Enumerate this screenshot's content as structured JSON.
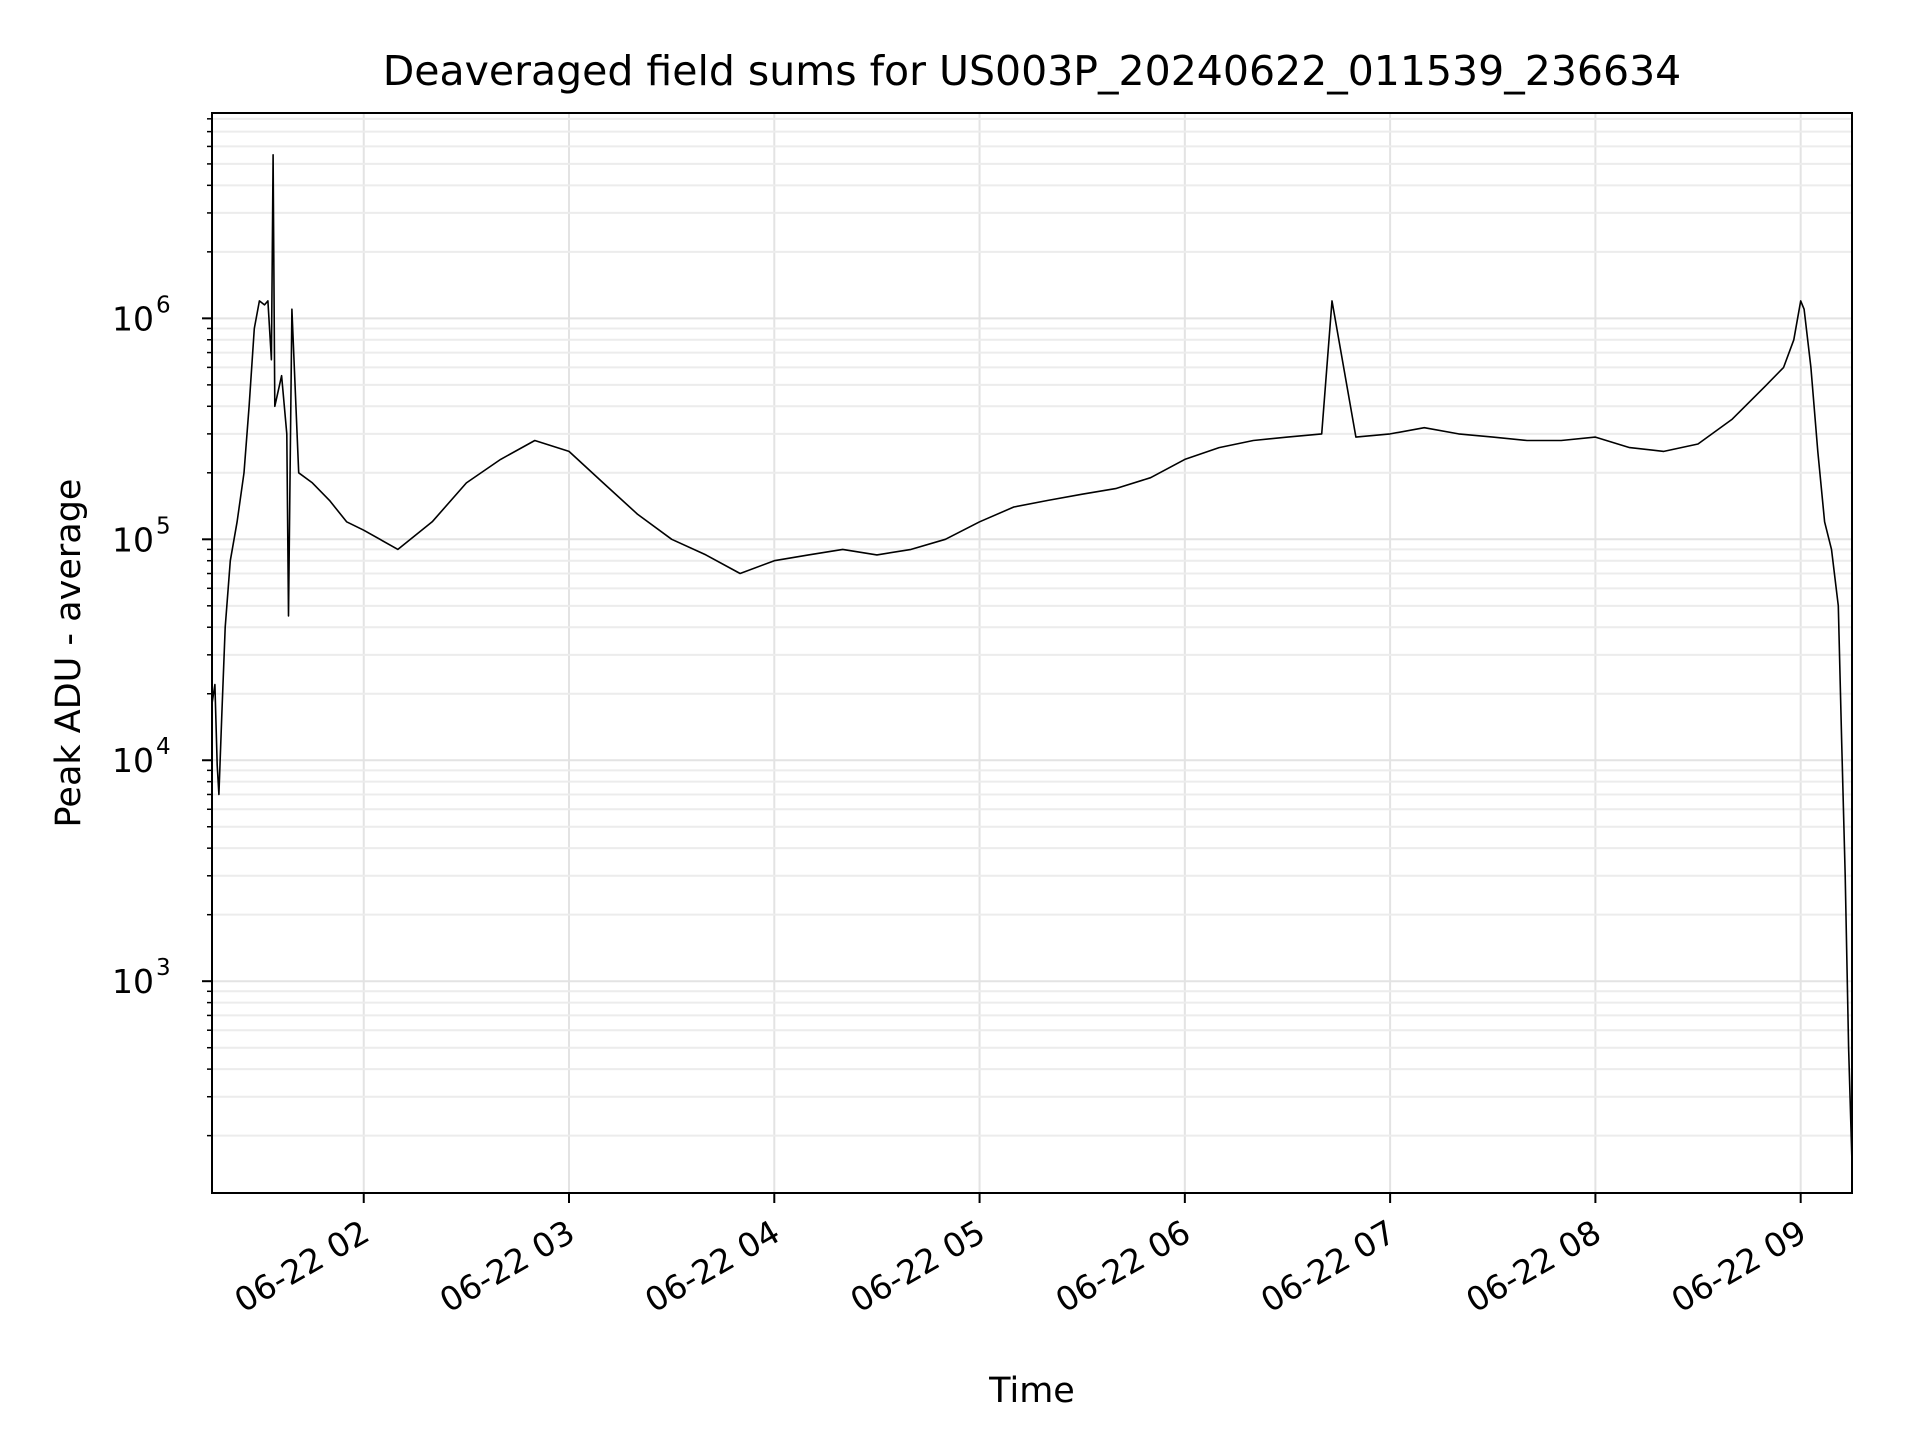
{
  "chart_data": {
    "type": "line",
    "title": "Deaveraged field sums for US003P_20240622_011539_236634",
    "xlabel": "Time",
    "ylabel": "Peak ADU - average",
    "yscale": "log",
    "ylim": [
      110,
      8500000
    ],
    "xlim": [
      "2024-06-22 01:15:39",
      "2024-06-22 09:15:00"
    ],
    "grid": true,
    "x_ticks": [
      {
        "t": "2024-06-22 02:00",
        "label": "06-22 02"
      },
      {
        "t": "2024-06-22 03:00",
        "label": "06-22 03"
      },
      {
        "t": "2024-06-22 04:00",
        "label": "06-22 04"
      },
      {
        "t": "2024-06-22 05:00",
        "label": "06-22 05"
      },
      {
        "t": "2024-06-22 06:00",
        "label": "06-22 06"
      },
      {
        "t": "2024-06-22 07:00",
        "label": "06-22 07"
      },
      {
        "t": "2024-06-22 08:00",
        "label": "06-22 08"
      },
      {
        "t": "2024-06-22 09:00",
        "label": "06-22 09"
      }
    ],
    "y_ticks": [
      {
        "value": 1000,
        "base": "10",
        "exp": "3"
      },
      {
        "value": 10000,
        "base": "10",
        "exp": "4"
      },
      {
        "value": 100000,
        "base": "10",
        "exp": "5"
      },
      {
        "value": 1000000,
        "base": "10",
        "exp": "6"
      }
    ],
    "series": [
      {
        "color": "#000000",
        "points": [
          [
            "2024-06-22 01:15:39",
            18000
          ],
          [
            "2024-06-22 01:16:30",
            22000
          ],
          [
            "2024-06-22 01:17:10",
            9500
          ],
          [
            "2024-06-22 01:17:40",
            7000
          ],
          [
            "2024-06-22 01:18:30",
            16000
          ],
          [
            "2024-06-22 01:19:30",
            40000
          ],
          [
            "2024-06-22 01:21:00",
            80000
          ],
          [
            "2024-06-22 01:23:00",
            120000
          ],
          [
            "2024-06-22 01:25:00",
            200000
          ],
          [
            "2024-06-22 01:26:30",
            400000
          ],
          [
            "2024-06-22 01:28:00",
            900000
          ],
          [
            "2024-06-22 01:29:30",
            1200000
          ],
          [
            "2024-06-22 01:31:00",
            1150000
          ],
          [
            "2024-06-22 01:32:00",
            1200000
          ],
          [
            "2024-06-22 01:33:00",
            650000
          ],
          [
            "2024-06-22 01:33:30",
            5500000
          ],
          [
            "2024-06-22 01:34:00",
            400000
          ],
          [
            "2024-06-22 01:36:00",
            550000
          ],
          [
            "2024-06-22 01:37:30",
            300000
          ],
          [
            "2024-06-22 01:38:00",
            45000
          ],
          [
            "2024-06-22 01:39:00",
            1100000
          ],
          [
            "2024-06-22 01:41:00",
            200000
          ],
          [
            "2024-06-22 01:45",
            180000
          ],
          [
            "2024-06-22 01:50",
            150000
          ],
          [
            "2024-06-22 01:55",
            120000
          ],
          [
            "2024-06-22 02:00",
            110000
          ],
          [
            "2024-06-22 02:10",
            90000
          ],
          [
            "2024-06-22 02:20",
            120000
          ],
          [
            "2024-06-22 02:30",
            180000
          ],
          [
            "2024-06-22 02:40",
            230000
          ],
          [
            "2024-06-22 02:50",
            280000
          ],
          [
            "2024-06-22 03:00",
            250000
          ],
          [
            "2024-06-22 03:10",
            180000
          ],
          [
            "2024-06-22 03:20",
            130000
          ],
          [
            "2024-06-22 03:30",
            100000
          ],
          [
            "2024-06-22 03:40",
            85000
          ],
          [
            "2024-06-22 03:50",
            70000
          ],
          [
            "2024-06-22 04:00",
            80000
          ],
          [
            "2024-06-22 04:10",
            85000
          ],
          [
            "2024-06-22 04:20",
            90000
          ],
          [
            "2024-06-22 04:30",
            85000
          ],
          [
            "2024-06-22 04:40",
            90000
          ],
          [
            "2024-06-22 04:50",
            100000
          ],
          [
            "2024-06-22 05:00",
            120000
          ],
          [
            "2024-06-22 05:10",
            140000
          ],
          [
            "2024-06-22 05:20",
            150000
          ],
          [
            "2024-06-22 05:30",
            160000
          ],
          [
            "2024-06-22 05:40",
            170000
          ],
          [
            "2024-06-22 05:50",
            190000
          ],
          [
            "2024-06-22 06:00",
            230000
          ],
          [
            "2024-06-22 06:10",
            260000
          ],
          [
            "2024-06-22 06:20",
            280000
          ],
          [
            "2024-06-22 06:30",
            290000
          ],
          [
            "2024-06-22 06:40",
            300000
          ],
          [
            "2024-06-22 06:43",
            1200000
          ],
          [
            "2024-06-22 06:50",
            290000
          ],
          [
            "2024-06-22 07:00",
            300000
          ],
          [
            "2024-06-22 07:10",
            320000
          ],
          [
            "2024-06-22 07:20",
            300000
          ],
          [
            "2024-06-22 07:30",
            290000
          ],
          [
            "2024-06-22 07:40",
            280000
          ],
          [
            "2024-06-22 07:50",
            280000
          ],
          [
            "2024-06-22 08:00",
            290000
          ],
          [
            "2024-06-22 08:10",
            260000
          ],
          [
            "2024-06-22 08:20",
            250000
          ],
          [
            "2024-06-22 08:30",
            270000
          ],
          [
            "2024-06-22 08:40",
            350000
          ],
          [
            "2024-06-22 08:50",
            500000
          ],
          [
            "2024-06-22 08:55",
            600000
          ],
          [
            "2024-06-22 08:58",
            800000
          ],
          [
            "2024-06-22 09:00",
            1200000
          ],
          [
            "2024-06-22 09:01",
            1100000
          ],
          [
            "2024-06-22 09:03",
            600000
          ],
          [
            "2024-06-22 09:05",
            250000
          ],
          [
            "2024-06-22 09:07",
            120000
          ],
          [
            "2024-06-22 09:09",
            90000
          ],
          [
            "2024-06-22 09:11",
            50000
          ],
          [
            "2024-06-22 09:12",
            12000
          ],
          [
            "2024-06-22 09:13",
            3000
          ],
          [
            "2024-06-22 09:14",
            500
          ],
          [
            "2024-06-22 09:15",
            150
          ]
        ]
      }
    ]
  }
}
